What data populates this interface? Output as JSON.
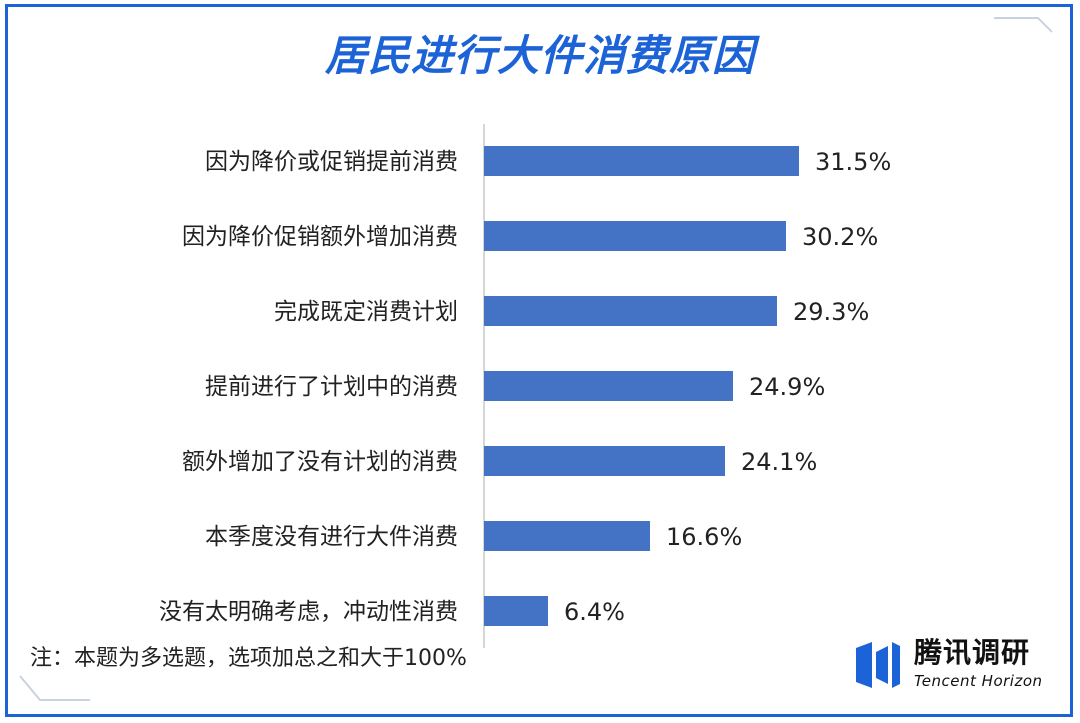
{
  "title": "居民进行大件消费原因",
  "note": "注：本题为多选题，选项加总之和大于100%",
  "logo": {
    "name_cn": "腾讯调研",
    "name_en": "Tencent Horizon"
  },
  "colors": {
    "bar": "#4472c4",
    "frame": "#1d63d8",
    "title": "#1d63d8"
  },
  "chart_data": {
    "type": "bar",
    "orientation": "horizontal",
    "categories": [
      "因为降价或促销提前消费",
      "因为降价促销额外增加消费",
      "完成既定消费计划",
      "提前进行了计划中的消费",
      "额外增加了没有计划的消费",
      "本季度没有进行大件消费",
      "没有太明确考虑，冲动性消费"
    ],
    "values": [
      31.5,
      30.2,
      29.3,
      24.9,
      24.1,
      16.6,
      6.4
    ],
    "value_labels": [
      "31.5%",
      "30.2%",
      "29.3%",
      "24.9%",
      "24.1%",
      "16.6%",
      "6.4%"
    ],
    "unit": "%",
    "xlim": [
      0,
      35
    ],
    "grid": false,
    "legend": "none"
  }
}
